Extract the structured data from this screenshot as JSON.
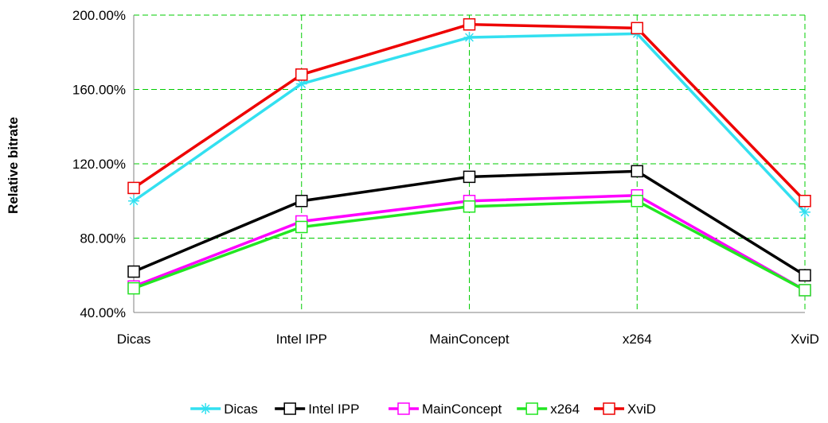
{
  "chart_data": {
    "type": "line",
    "title": "",
    "xlabel": "",
    "ylabel": "Relative bitrate",
    "categories": [
      "Dicas",
      "Intel IPP",
      "MainConcept",
      "x264",
      "XviD"
    ],
    "ylim": [
      40,
      200
    ],
    "yticks": [
      "40.00%",
      "80.00%",
      "120.00%",
      "160.00%",
      "200.00%"
    ],
    "grid": true,
    "legend_position": "bottom",
    "series": [
      {
        "name": "Dicas",
        "color": "#33e0f0",
        "marker": "star",
        "values": [
          100,
          163,
          188,
          190,
          94
        ]
      },
      {
        "name": "Intel IPP",
        "color": "#000000",
        "marker": "square",
        "values": [
          62,
          100,
          113,
          116,
          60
        ]
      },
      {
        "name": "MainConcept",
        "color": "#ff00ff",
        "marker": "square",
        "values": [
          54,
          89,
          100,
          103,
          52
        ]
      },
      {
        "name": "x264",
        "color": "#22e622",
        "marker": "square",
        "values": [
          53,
          86,
          97,
          100,
          52
        ]
      },
      {
        "name": "XviD",
        "color": "#ee0000",
        "marker": "square",
        "values": [
          107,
          168,
          195,
          193,
          100
        ]
      }
    ]
  }
}
